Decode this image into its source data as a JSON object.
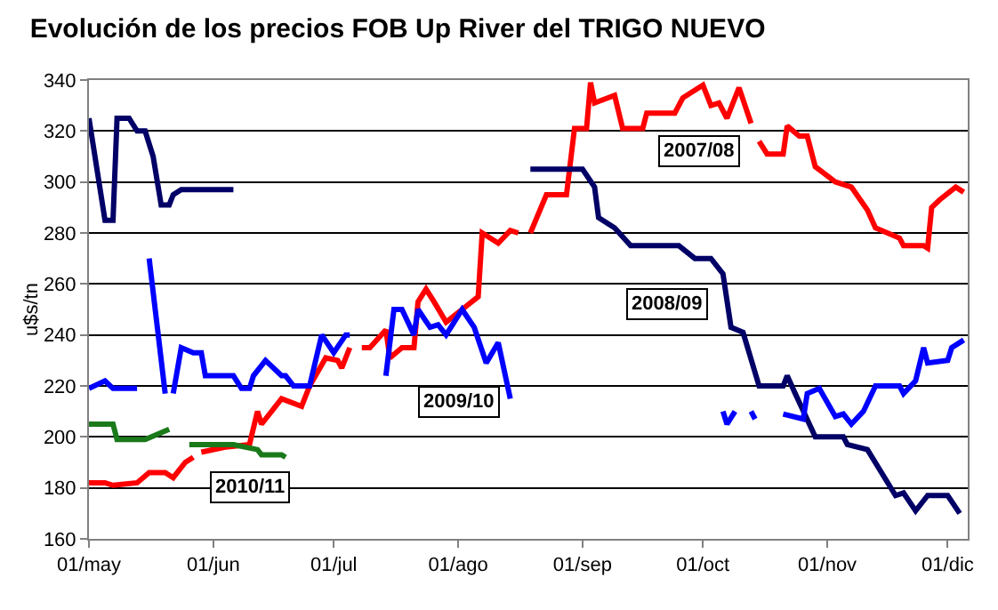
{
  "chart_data": {
    "type": "line",
    "title": "Evolución de los precios FOB Up River del TRIGO NUEVO",
    "ylabel": "u$s/tn",
    "xlim": [
      "--05-01",
      "--12-06"
    ],
    "xticks": [
      {
        "value": "--05-01",
        "label": "01/may"
      },
      {
        "value": "--06-01",
        "label": "01/jun"
      },
      {
        "value": "--07-01",
        "label": "01/jul"
      },
      {
        "value": "--08-01",
        "label": "01/ago"
      },
      {
        "value": "--09-01",
        "label": "01/sep"
      },
      {
        "value": "--10-01",
        "label": "01/oct"
      },
      {
        "value": "--11-01",
        "label": "01/nov"
      },
      {
        "value": "--12-01",
        "label": "01/dic"
      }
    ],
    "ylim": [
      160,
      340
    ],
    "yticks": [
      160,
      180,
      200,
      220,
      240,
      260,
      280,
      300,
      320,
      340
    ],
    "grid": "y",
    "legend": false,
    "marker": "none",
    "line_style": "solid",
    "series": [
      {
        "name": "2007/08",
        "color": "#ff0000",
        "x": [
          "--05-01",
          "--05-05",
          "--05-07",
          "--05-13",
          "--05-16",
          "--05-20",
          "--05-22",
          "--05-25",
          "--05-27",
          "--05-28",
          "--05-29",
          "--06-04",
          "--06-10",
          "--06-12",
          "--06-13",
          "--06-18",
          "--06-23",
          "--06-25",
          "--06-29",
          "--07-02",
          "--07-03",
          "--07-05",
          "--07-06",
          "--07-08",
          "--07-10",
          "--07-14",
          "--07-15",
          "--07-18",
          "--07-21",
          "--07-22",
          "--07-24",
          "--07-26",
          "--07-29",
          "--08-02",
          "--08-06",
          "--08-07",
          "--08-11",
          "--08-14",
          "--08-16",
          "--08-17",
          "--08-19",
          "--08-23",
          "--08-28",
          "--08-30",
          "--09-02",
          "--09-03",
          "--09-04",
          "--09-09",
          "--09-11",
          "--09-16",
          "--09-17",
          "--09-24",
          "--09-26",
          "--10-01",
          "--10-03",
          "--10-05",
          "--10-07",
          "--10-10",
          "--10-13",
          "--10-14",
          "--10-15",
          "--10-17",
          "--10-21",
          "--10-22",
          "--10-25",
          "--10-27",
          "--10-29",
          "--11-03",
          "--11-07",
          "--11-11",
          "--11-13",
          "--11-19",
          "--11-20",
          "--11-25",
          "--11-26",
          "--11-27",
          "--11-29",
          "--12-03",
          "--12-05"
        ],
        "values": [
          182,
          182,
          181,
          182,
          186,
          186,
          184,
          190,
          192,
          null,
          194,
          196,
          197,
          210,
          205,
          215,
          212,
          220,
          231,
          230,
          227,
          235,
          null,
          235,
          235,
          242,
          231,
          235,
          235,
          253,
          258,
          253,
          245,
          250,
          255,
          280,
          276,
          281,
          280,
          null,
          280,
          295,
          295,
          321,
          321,
          339,
          331,
          334,
          321,
          321,
          327,
          327,
          333,
          338,
          330,
          331,
          325,
          337,
          323,
          null,
          316,
          311,
          311,
          322,
          318,
          318,
          306,
          300,
          298,
          289,
          282,
          278,
          275,
          275,
          274,
          290,
          293,
          298,
          296
        ]
      },
      {
        "name": "2008/09",
        "color": "#000066",
        "x": [
          "--05-01",
          "--05-05",
          "--05-07",
          "--05-08",
          "--05-11",
          "--05-13",
          "--05-15",
          "--05-17",
          "--05-19",
          "--05-21",
          "--05-22",
          "--05-24",
          "--06-06",
          "--06-07",
          "--08-19",
          "--09-01",
          "--09-04",
          "--09-05",
          "--09-09",
          "--09-13",
          "--09-25",
          "--09-29",
          "--10-03",
          "--10-06",
          "--10-08",
          "--10-11",
          "--10-15",
          "--10-21",
          "--10-22",
          "--10-24",
          "--10-29",
          "--11-05",
          "--11-06",
          "--11-11",
          "--11-18",
          "--11-20",
          "--11-23",
          "--11-24",
          "--11-26",
          "--12-01",
          "--12-04"
        ],
        "values": [
          325,
          285,
          285,
          325,
          325,
          320,
          320,
          310,
          291,
          291,
          295,
          297,
          297,
          null,
          305,
          305,
          298,
          286,
          282,
          275,
          275,
          270,
          270,
          264,
          243,
          241,
          220,
          220,
          224,
          217,
          200,
          200,
          197,
          195,
          177,
          178,
          171,
          173,
          177,
          177,
          170
        ]
      },
      {
        "name": "2009/10",
        "color": "#0000ff",
        "x": [
          "--05-01",
          "--05-05",
          "--05-07",
          "--05-13",
          "--05-14",
          "--05-16",
          "--05-20",
          "--05-21",
          "--05-22",
          "--05-24",
          "--05-27",
          "--05-29",
          "--05-30",
          "--06-06",
          "--06-08",
          "--06-10",
          "--06-11",
          "--06-14",
          "--06-18",
          "--06-19",
          "--06-21",
          "--06-25",
          "--06-28",
          "--07-01",
          "--07-04",
          "--07-05",
          "--07-07",
          "--07-14",
          "--07-16",
          "--07-18",
          "--07-21",
          "--07-22",
          "--07-25",
          "--07-27",
          "--07-29",
          "--08-02",
          "--08-05",
          "--08-08",
          "--08-11",
          "--08-14",
          "--08-20",
          "--10-06",
          "--10-07",
          "--10-09",
          "--10-11",
          "--10-13",
          "--10-14",
          "--10-18",
          "--10-21",
          "--10-26",
          "--10-27",
          "--10-30",
          "--11-03",
          "--11-05",
          "--11-07",
          "--11-10",
          "--11-13",
          "--11-19",
          "--11-20",
          "--11-23",
          "--11-25",
          "--11-26",
          "--12-01",
          "--12-02",
          "--12-05"
        ],
        "values": [
          219,
          222,
          219,
          219,
          null,
          270,
          217,
          null,
          217,
          235,
          233,
          233,
          224,
          224,
          219,
          219,
          224,
          230,
          224,
          224,
          220,
          220,
          240,
          233,
          240,
          240,
          null,
          224,
          250,
          250,
          240,
          250,
          243,
          244,
          240,
          250,
          243,
          229,
          237,
          215,
          null,
          210,
          205,
          210,
          null,
          210,
          207,
          null,
          209,
          207,
          217,
          219,
          208,
          209,
          205,
          210,
          220,
          220,
          217,
          222,
          235,
          229,
          230,
          235,
          238
        ]
      },
      {
        "name": "2010/11",
        "color": "#1a7a1a",
        "x": [
          "--05-01",
          "--05-07",
          "--05-08",
          "--05-15",
          "--05-21",
          "--05-23",
          "--05-26",
          "--06-06",
          "--06-12",
          "--06-13",
          "--06-18",
          "--06-19"
        ],
        "values": [
          205,
          205,
          199,
          199,
          203,
          null,
          197,
          197,
          195,
          193,
          193,
          192
        ]
      }
    ]
  }
}
